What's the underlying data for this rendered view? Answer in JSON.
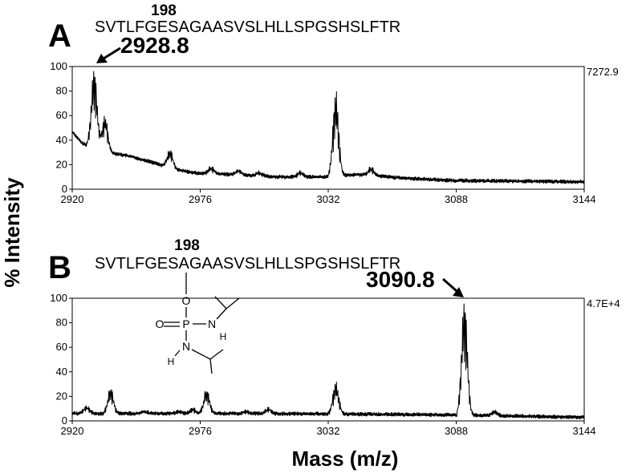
{
  "figure": {
    "y_axis_title": "% Intensity",
    "x_axis_title": "Mass (m/z)"
  },
  "chart_data": [
    {
      "type": "line",
      "panel": "A",
      "sequence": "SVTLFGESAGAASVSLHLLSPGSHSLFTR",
      "residue_number": "198",
      "peak_label": "2928.8",
      "max_intensity_label": "7272.9",
      "xlim": [
        2920,
        3144
      ],
      "ylim": [
        0,
        100
      ],
      "x_ticks": [
        2920,
        2976,
        3032,
        3088,
        3144
      ],
      "y_ticks": [
        0,
        20,
        40,
        60,
        80,
        100
      ],
      "baseline": [
        [
          2920,
          47
        ],
        [
          2924,
          38
        ],
        [
          2928,
          34
        ],
        [
          2936,
          30
        ],
        [
          2945,
          27
        ],
        [
          2955,
          22
        ],
        [
          2965,
          16
        ],
        [
          2975,
          13
        ],
        [
          2990,
          12
        ],
        [
          3010,
          10
        ],
        [
          3030,
          10
        ],
        [
          3045,
          12
        ],
        [
          3052,
          11
        ],
        [
          3065,
          9
        ],
        [
          3088,
          7
        ],
        [
          3144,
          6
        ]
      ],
      "peak_clusters": [
        {
          "center": 2928.8,
          "height": 100
        },
        {
          "center": 2933.5,
          "height": 60
        },
        {
          "center": 2962.0,
          "height": 33
        },
        {
          "center": 2980.0,
          "height": 18
        },
        {
          "center": 2992.0,
          "height": 16
        },
        {
          "center": 3001.0,
          "height": 14
        },
        {
          "center": 3019.0,
          "height": 14
        },
        {
          "center": 3034.5,
          "height": 80
        },
        {
          "center": 3050.0,
          "height": 18
        }
      ]
    },
    {
      "type": "line",
      "panel": "B",
      "sequence": "SVTLFGESAGAASVSLHLLSPGSHSLFTR",
      "residue_number": "198",
      "peak_label": "3090.8",
      "max_intensity_label": "4.7E+4",
      "xlim": [
        2920,
        3144
      ],
      "ylim": [
        0,
        100
      ],
      "x_ticks": [
        2920,
        2976,
        3032,
        3088,
        3144
      ],
      "y_ticks": [
        0,
        20,
        40,
        60,
        80,
        100
      ],
      "baseline": [
        [
          2920,
          6
        ],
        [
          3000,
          6
        ],
        [
          3080,
          5
        ],
        [
          3144,
          3
        ]
      ],
      "peak_clusters": [
        {
          "center": 2925.5,
          "height": 12
        },
        {
          "center": 2936.0,
          "height": 27
        },
        {
          "center": 2951.0,
          "height": 8
        },
        {
          "center": 2966.0,
          "height": 8
        },
        {
          "center": 2972.0,
          "height": 10
        },
        {
          "center": 2978.0,
          "height": 26
        },
        {
          "center": 2995.0,
          "height": 8
        },
        {
          "center": 3005.0,
          "height": 10
        },
        {
          "center": 3034.5,
          "height": 32
        },
        {
          "center": 3090.8,
          "height": 100
        },
        {
          "center": 3104.0,
          "height": 8
        }
      ],
      "structure_labels": {
        "o_top": "O",
        "o_left": "O",
        "p": "P",
        "n1": "N",
        "h1": "H",
        "n2": "N",
        "h2": "H"
      }
    }
  ]
}
